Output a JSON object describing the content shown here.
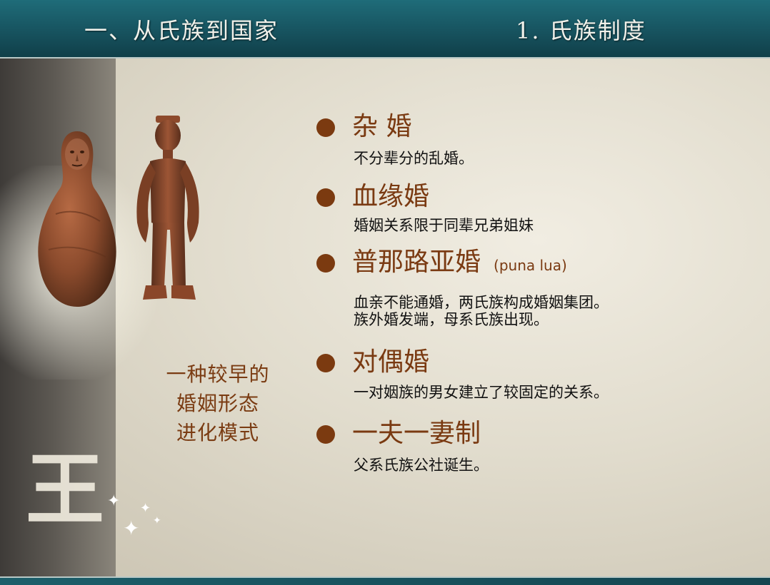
{
  "header": {
    "left_title": "一、从氏族到国家",
    "right_title": "1. 氏族制度"
  },
  "decor": {
    "glyph": "王",
    "sparkles": "✦"
  },
  "caption": {
    "lines": [
      "一种较早的",
      "婚姻形态",
      "进化模式"
    ]
  },
  "items": [
    {
      "title": "杂 婚",
      "desc": [
        "不分辈分的乱婚。"
      ]
    },
    {
      "title": "血缘婚",
      "desc": [
        "婚姻关系限于同辈兄弟姐妹"
      ]
    },
    {
      "title": "普那路亚婚",
      "note": "(puna lua)",
      "desc": [
        "血亲不能通婚，两氏族构成婚姻集团。",
        "族外婚发端，母系氏族出现。"
      ]
    },
    {
      "title": "对偶婚",
      "desc": [
        "一对姻族的男女建立了较固定的关系。"
      ]
    },
    {
      "title": "一夫一妻制",
      "desc": [
        "父系氏族公社诞生。"
      ]
    }
  ],
  "colors": {
    "header": "#17535f",
    "accent": "#7a3a12",
    "text": "#111111"
  }
}
